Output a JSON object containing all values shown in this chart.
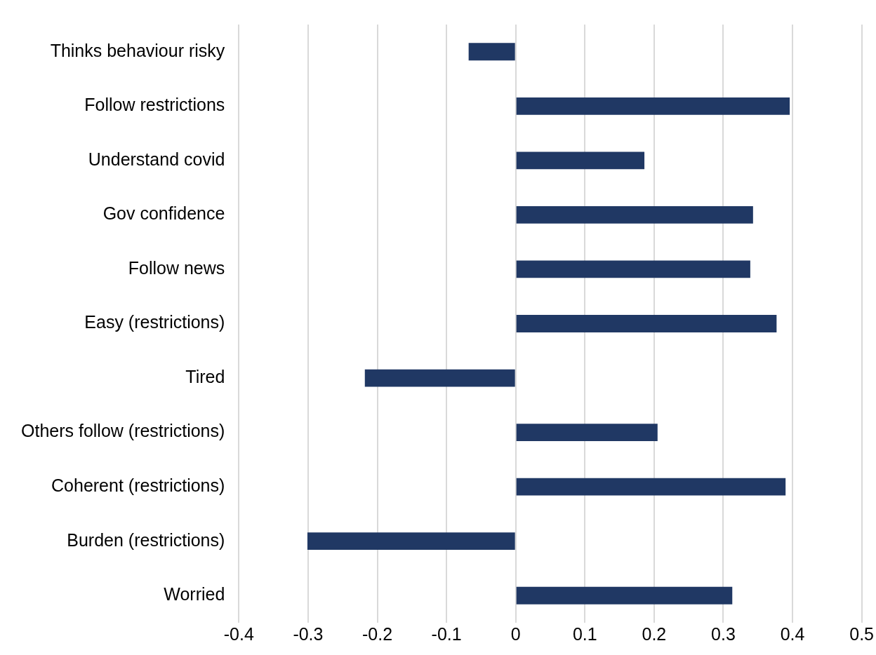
{
  "chart_data": {
    "type": "bar",
    "orientation": "horizontal",
    "categories": [
      "Thinks behaviour risky",
      "Follow restrictions",
      "Understand covid",
      "Gov confidence",
      "Follow news",
      "Easy (restrictions)",
      "Tired",
      "Others follow (restrictions)",
      "Coherent (restrictions)",
      "Burden (restrictions)",
      "Worried"
    ],
    "values": [
      -0.068,
      0.396,
      0.186,
      0.343,
      0.339,
      0.377,
      -0.218,
      0.205,
      0.39,
      -0.301,
      0.313
    ],
    "color": "#203864",
    "xlim": [
      -0.4,
      0.5
    ],
    "xticks": [
      -0.4,
      -0.3,
      -0.2,
      -0.1,
      0,
      0.1,
      0.2,
      0.3,
      0.4,
      0.5
    ],
    "grid": "x",
    "legend": false
  }
}
